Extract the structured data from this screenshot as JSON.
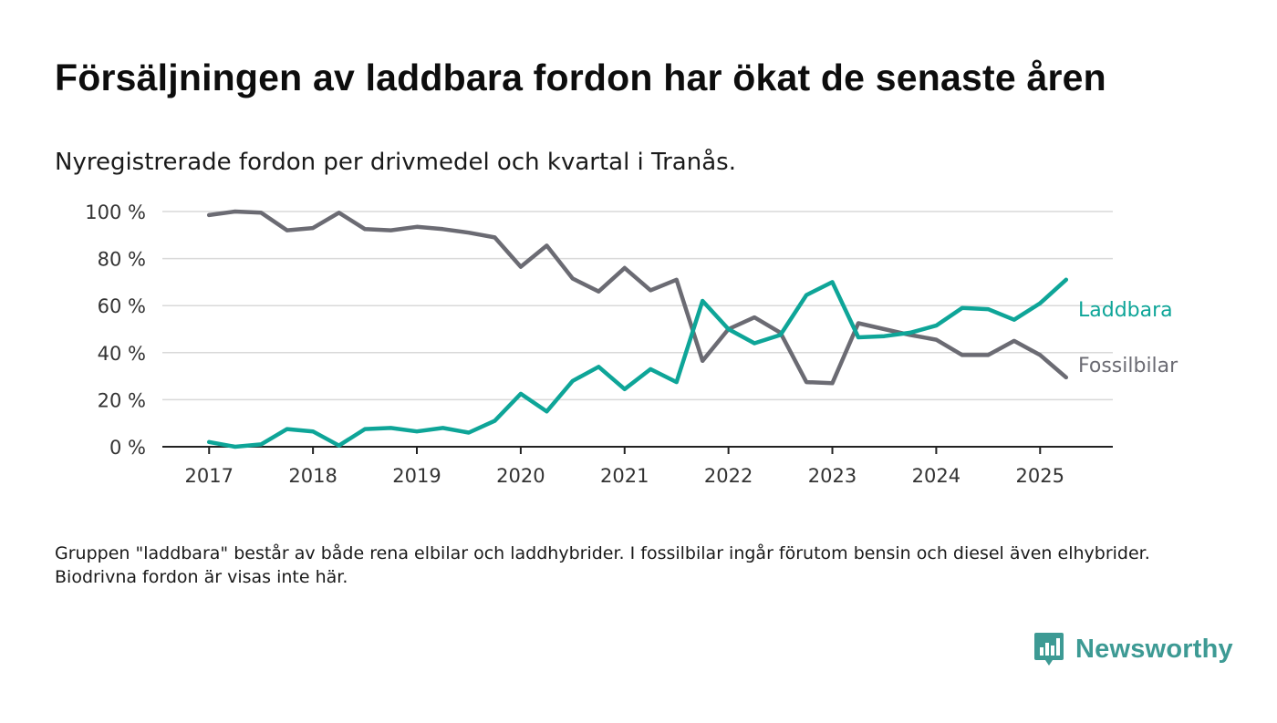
{
  "title": "Försäljningen av laddbara fordon har ökat de senaste åren",
  "subtitle": "Nyregistrerade fordon per drivmedel och kvartal i Tranås.",
  "footnote": "Gruppen \"laddbara\" består av både rena elbilar och laddhybrider. I fossilbilar ingår förutom bensin och diesel även elhybrider. Biodrivna fordon är visas inte här.",
  "brand": {
    "name": "Newsworthy",
    "icon": "newsworthy-logo-icon"
  },
  "colors": {
    "laddbara": "#0ea598",
    "fossil": "#6b6b73",
    "grid": "#d9d9d9",
    "axis": "#222222",
    "text": "#333333",
    "brand": "#3d9a94"
  },
  "chart_data": {
    "type": "line",
    "x_ticks": [
      "2017",
      "2018",
      "2019",
      "2020",
      "2021",
      "2022",
      "2023",
      "2024",
      "2025"
    ],
    "y_ticks": [
      "0 %",
      "20 %",
      "40 %",
      "60 %",
      "80 %",
      "100 %"
    ],
    "ylim": [
      0,
      100
    ],
    "xlim": [
      2016.55,
      2025.7
    ],
    "grid": true,
    "legend": "end-of-line labels",
    "x": [
      2017.0,
      2017.25,
      2017.5,
      2017.75,
      2018.0,
      2018.25,
      2018.5,
      2018.75,
      2019.0,
      2019.25,
      2019.5,
      2019.75,
      2020.0,
      2020.25,
      2020.5,
      2020.75,
      2021.0,
      2021.25,
      2021.5,
      2021.75,
      2022.0,
      2022.25,
      2022.5,
      2022.75,
      2023.0,
      2023.25,
      2023.5,
      2023.75,
      2024.0,
      2024.25,
      2024.5,
      2024.75,
      2025.0,
      2025.25
    ],
    "series": [
      {
        "name": "Laddbara",
        "values": [
          2,
          0,
          1,
          7.5,
          6.5,
          0.5,
          7.5,
          8,
          6.5,
          8,
          6,
          11,
          22.5,
          15,
          28,
          34,
          24.5,
          33,
          27.5,
          62,
          50,
          44,
          47.5,
          64.5,
          70,
          46.5,
          47,
          48.5,
          51.5,
          59,
          58.5,
          54,
          61,
          71
        ]
      },
      {
        "name": "Fossilbilar",
        "values": [
          98.5,
          100,
          99.5,
          92,
          93,
          99.5,
          92.5,
          92,
          93.5,
          92.5,
          91,
          89,
          76.5,
          85.5,
          71.5,
          66,
          76,
          66.5,
          71,
          36.5,
          50,
          55,
          48.5,
          27.5,
          27,
          52.5,
          50,
          47.5,
          45.5,
          39,
          39,
          45,
          39,
          29.5
        ]
      }
    ]
  }
}
